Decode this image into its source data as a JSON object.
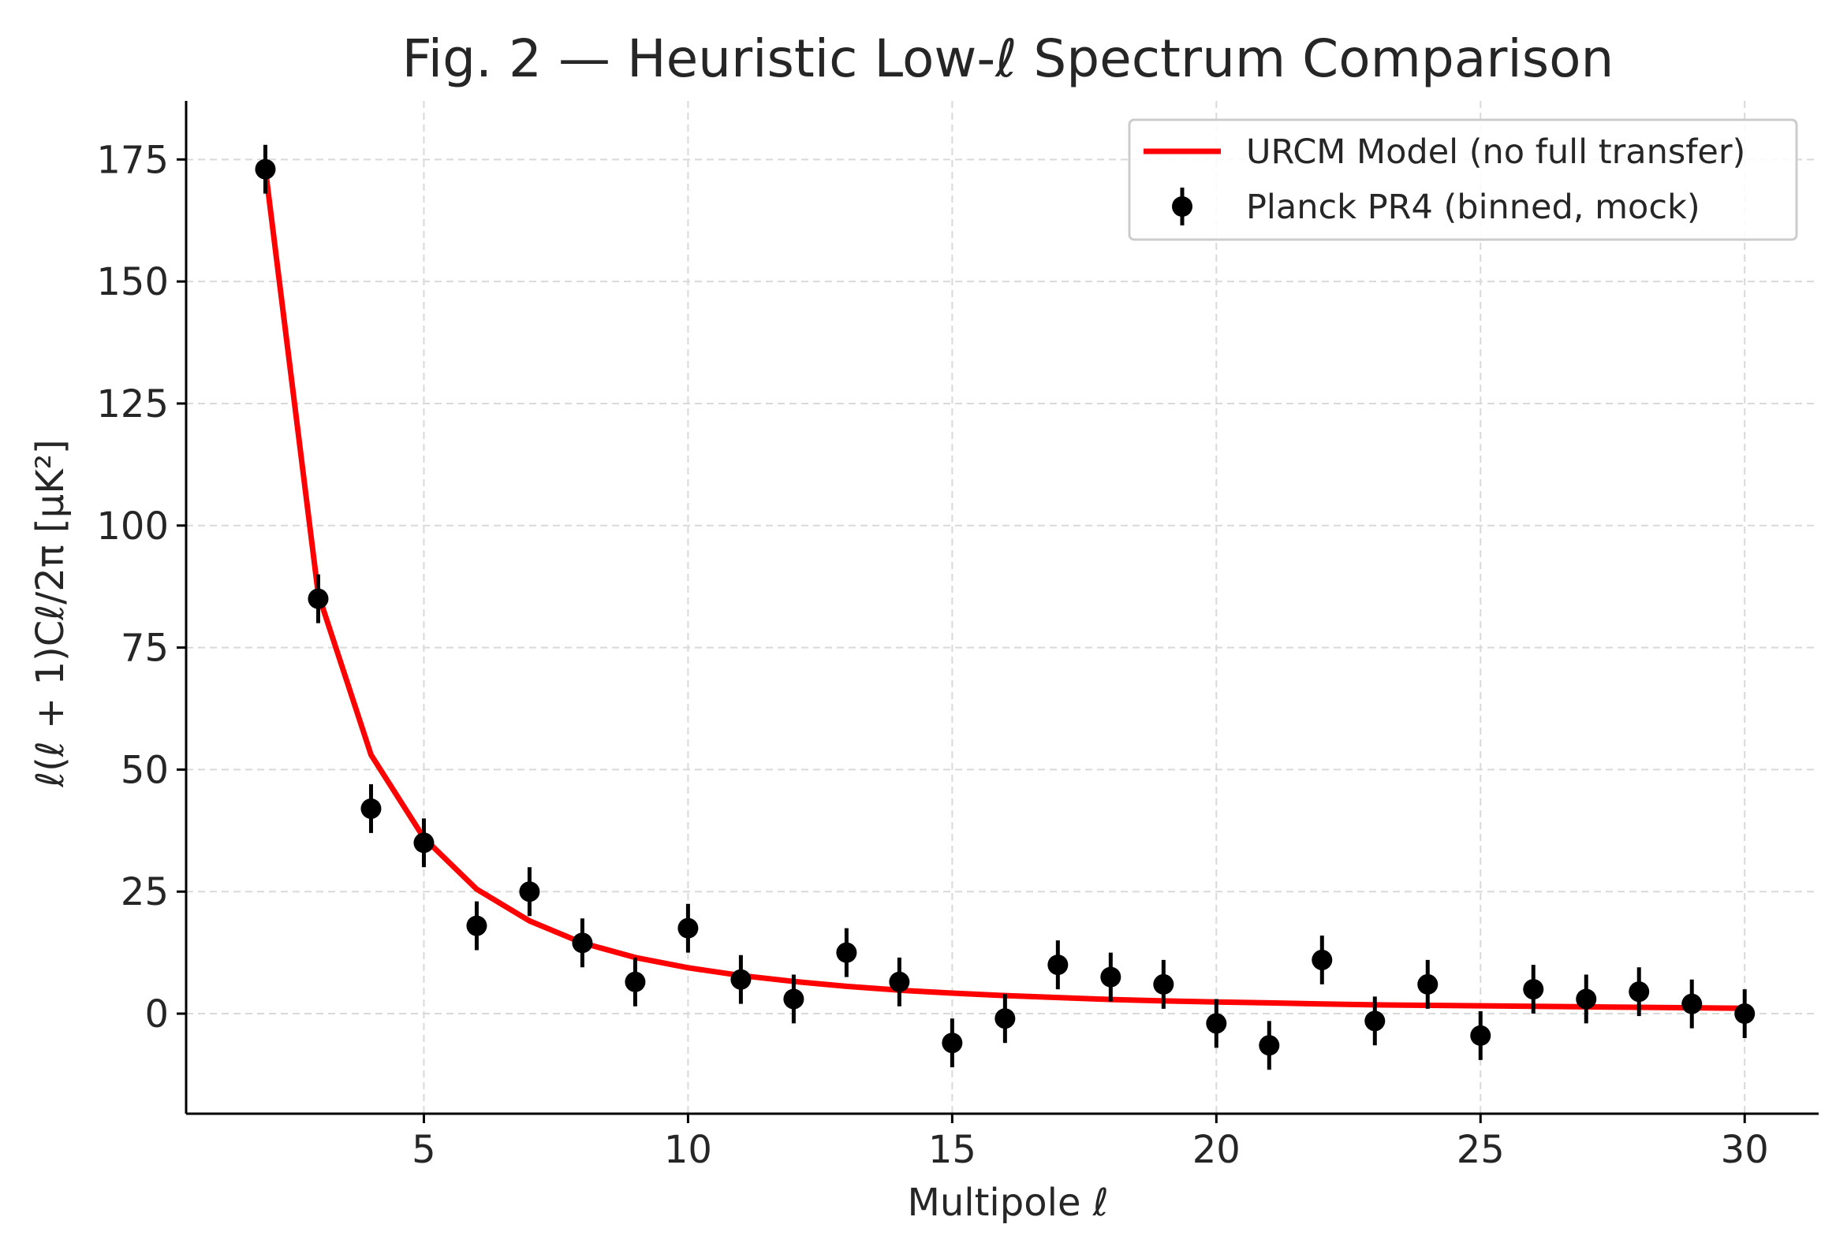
{
  "chart_data": {
    "type": "line",
    "title": "Fig. 2 — Heuristic Low-ℓ Spectrum Comparison",
    "xlabel": "Multipole ℓ",
    "ylabel": "ℓ(ℓ + 1)Cℓ/2π [μK²]",
    "xlim": [
      0.5,
      31.4
    ],
    "ylim": [
      -20.5,
      187
    ],
    "xticks": [
      5,
      10,
      15,
      20,
      25,
      30
    ],
    "yticks": [
      0,
      25,
      50,
      75,
      100,
      125,
      150,
      175
    ],
    "grid": true,
    "legend_position": "top-right",
    "series": [
      {
        "name": "URCM Model (no full transfer)",
        "kind": "line",
        "color": "#ff0000",
        "x": [
          2,
          3,
          4,
          5,
          6,
          7,
          8,
          9,
          10,
          11,
          12,
          13,
          14,
          15,
          16,
          17,
          18,
          19,
          20,
          21,
          22,
          23,
          24,
          25,
          26,
          27,
          28,
          29,
          30
        ],
        "y": [
          173,
          86,
          53,
          36,
          25.5,
          19,
          14.5,
          11.5,
          9.4,
          7.8,
          6.6,
          5.6,
          4.8,
          4.2,
          3.7,
          3.3,
          2.9,
          2.6,
          2.4,
          2.2,
          2.0,
          1.8,
          1.7,
          1.6,
          1.5,
          1.4,
          1.3,
          1.2,
          1.1
        ]
      },
      {
        "name": "Planck PR4 (binned, mock)",
        "kind": "errorbar",
        "color": "#000000",
        "x": [
          2,
          3,
          4,
          5,
          6,
          7,
          8,
          9,
          10,
          11,
          12,
          13,
          14,
          15,
          16,
          17,
          18,
          19,
          20,
          21,
          22,
          23,
          24,
          25,
          26,
          27,
          28,
          29,
          30
        ],
        "y": [
          173,
          85,
          42,
          35,
          18,
          25,
          14.5,
          6.5,
          17.5,
          7,
          3,
          12.5,
          6.5,
          -6,
          -1,
          10,
          7.5,
          6,
          -2,
          -6.5,
          11,
          -1.5,
          6,
          -4.5,
          5,
          3,
          4.5,
          2,
          0
        ],
        "yerr": 5
      }
    ]
  }
}
